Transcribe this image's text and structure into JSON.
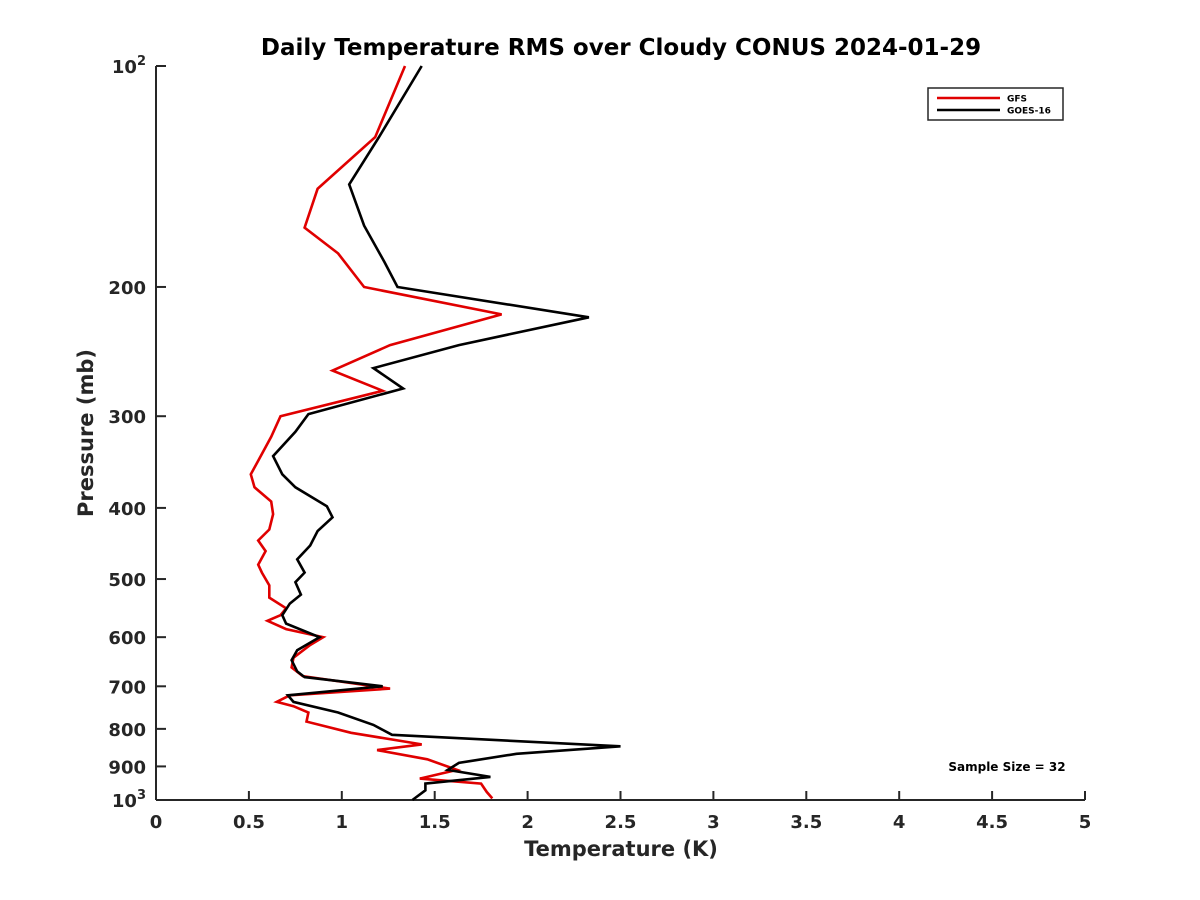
{
  "chart_data": {
    "type": "line",
    "title": "Daily Temperature RMS over Cloudy CONUS 2024-01-29",
    "xlabel": "Temperature (K)",
    "ylabel": "Pressure (mb)",
    "xlim": [
      0,
      5
    ],
    "ylim": [
      100,
      1000
    ],
    "y_scale": "log",
    "y_reversed": true,
    "x_ticks": [
      0,
      0.5,
      1,
      1.5,
      2,
      2.5,
      3,
      3.5,
      4,
      4.5,
      5
    ],
    "x_tick_labels": [
      "0",
      "0.5",
      "1",
      "1.5",
      "2",
      "2.5",
      "3",
      "3.5",
      "4",
      "4.5",
      "5"
    ],
    "y_ticks": [
      100,
      200,
      300,
      400,
      500,
      600,
      700,
      800,
      900,
      1000
    ],
    "y_tick_labels": [
      "10^2",
      "200",
      "300",
      "400",
      "500",
      "600",
      "700",
      "800",
      "900",
      "10^3"
    ],
    "grid": false,
    "legend_position": "top-right",
    "annotation": "Sample Size = 32",
    "series": [
      {
        "name": "GFS",
        "color": "#e00000",
        "points": [
          [
            1.34,
            100
          ],
          [
            1.18,
            125
          ],
          [
            0.87,
            147
          ],
          [
            0.8,
            166
          ],
          [
            0.98,
            180
          ],
          [
            1.12,
            200
          ],
          [
            1.86,
            218
          ],
          [
            1.26,
            240
          ],
          [
            0.95,
            260
          ],
          [
            1.22,
            277
          ],
          [
            0.67,
            300
          ],
          [
            0.62,
            320
          ],
          [
            0.55,
            345
          ],
          [
            0.51,
            360
          ],
          [
            0.53,
            375
          ],
          [
            0.62,
            392
          ],
          [
            0.63,
            408
          ],
          [
            0.61,
            428
          ],
          [
            0.55,
            443
          ],
          [
            0.59,
            458
          ],
          [
            0.55,
            478
          ],
          [
            0.57,
            490
          ],
          [
            0.61,
            510
          ],
          [
            0.61,
            530
          ],
          [
            0.7,
            548
          ],
          [
            0.67,
            560
          ],
          [
            0.6,
            570
          ],
          [
            0.7,
            585
          ],
          [
            0.9,
            600
          ],
          [
            0.83,
            615
          ],
          [
            0.74,
            640
          ],
          [
            0.73,
            660
          ],
          [
            0.79,
            678
          ],
          [
            1.26,
            705
          ],
          [
            0.72,
            720
          ],
          [
            0.65,
            735
          ],
          [
            0.74,
            745
          ],
          [
            0.82,
            760
          ],
          [
            0.81,
            782
          ],
          [
            1.05,
            810
          ],
          [
            1.43,
            840
          ],
          [
            1.19,
            855
          ],
          [
            1.46,
            880
          ],
          [
            1.62,
            910
          ],
          [
            1.42,
            935
          ],
          [
            1.75,
            950
          ],
          [
            1.78,
            975
          ],
          [
            1.81,
            995
          ]
        ]
      },
      {
        "name": "GOES-16",
        "color": "#000000",
        "points": [
          [
            1.43,
            100
          ],
          [
            1.2,
            125
          ],
          [
            1.04,
            145
          ],
          [
            1.12,
            165
          ],
          [
            1.23,
            185
          ],
          [
            1.3,
            200
          ],
          [
            2.33,
            220
          ],
          [
            1.63,
            240
          ],
          [
            1.17,
            258
          ],
          [
            1.33,
            275
          ],
          [
            0.82,
            298
          ],
          [
            0.75,
            315
          ],
          [
            0.63,
            340
          ],
          [
            0.68,
            360
          ],
          [
            0.75,
            375
          ],
          [
            0.92,
            398
          ],
          [
            0.95,
            412
          ],
          [
            0.87,
            430
          ],
          [
            0.83,
            450
          ],
          [
            0.76,
            470
          ],
          [
            0.8,
            490
          ],
          [
            0.75,
            505
          ],
          [
            0.78,
            525
          ],
          [
            0.72,
            540
          ],
          [
            0.68,
            560
          ],
          [
            0.7,
            575
          ],
          [
            0.88,
            600
          ],
          [
            0.76,
            625
          ],
          [
            0.73,
            645
          ],
          [
            0.76,
            668
          ],
          [
            0.8,
            680
          ],
          [
            1.22,
            700
          ],
          [
            0.71,
            720
          ],
          [
            0.74,
            735
          ],
          [
            0.98,
            760
          ],
          [
            1.17,
            790
          ],
          [
            1.27,
            815
          ],
          [
            2.5,
            845
          ],
          [
            1.94,
            865
          ],
          [
            1.63,
            890
          ],
          [
            1.57,
            910
          ],
          [
            1.8,
            930
          ],
          [
            1.45,
            950
          ],
          [
            1.45,
            970
          ],
          [
            1.38,
            1000
          ]
        ]
      }
    ]
  }
}
